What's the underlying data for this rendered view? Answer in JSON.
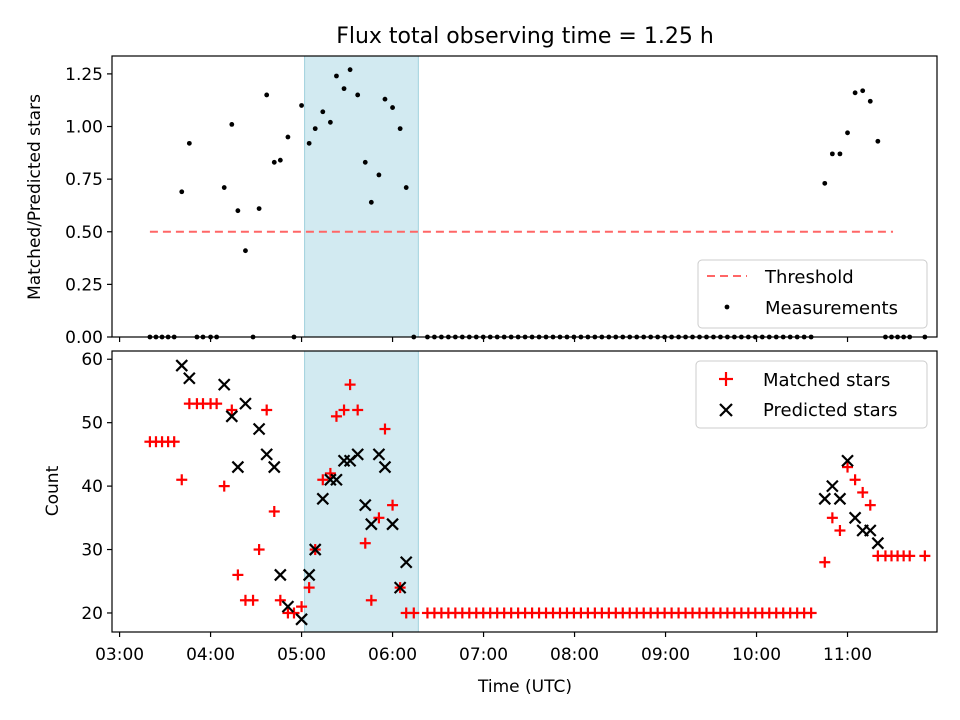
{
  "title": "Flux total observing time = 1.25 h",
  "colors": {
    "shade": "#add8e6",
    "threshold": "#ff6666",
    "matched": "#ff0000",
    "predicted": "#000000"
  },
  "chart_data": [
    {
      "type": "scatter",
      "panel": "top",
      "ylabel": "Matched/Predicted stars",
      "ylim": [
        0,
        1.335
      ],
      "xlim": [
        "02:55",
        "11:59"
      ],
      "yticks": [
        "0.00",
        "0.25",
        "0.50",
        "0.75",
        "1.00",
        "1.25"
      ],
      "grid": false,
      "legend_position": "lower-right",
      "shaded_interval": [
        "05:02",
        "06:17"
      ],
      "threshold": {
        "name": "Threshold",
        "value": 0.5,
        "x_range": [
          "03:20",
          "11:30"
        ]
      },
      "series": [
        {
          "name": "Measurements",
          "points": [
            [
              "03:20",
              0
            ],
            [
              "03:24",
              0
            ],
            [
              "03:28",
              0
            ],
            [
              "03:32",
              0
            ],
            [
              "03:36",
              0
            ],
            [
              "03:41",
              0.69
            ],
            [
              "03:46",
              0.92
            ],
            [
              "03:51",
              0
            ],
            [
              "03:55",
              0
            ],
            [
              "04:00",
              0
            ],
            [
              "04:04",
              0
            ],
            [
              "04:09",
              0.71
            ],
            [
              "04:14",
              1.01
            ],
            [
              "04:18",
              0.6
            ],
            [
              "04:23",
              0.41
            ],
            [
              "04:28",
              0
            ],
            [
              "04:32",
              0.61
            ],
            [
              "04:37",
              1.15
            ],
            [
              "04:42",
              0.83
            ],
            [
              "04:46",
              0.84
            ],
            [
              "04:51",
              0.95
            ],
            [
              "04:55",
              0
            ],
            [
              "05:00",
              1.1
            ],
            [
              "05:05",
              0.92
            ],
            [
              "05:09",
              0.99
            ],
            [
              "05:14",
              1.07
            ],
            [
              "05:19",
              1.02
            ],
            [
              "05:23",
              1.24
            ],
            [
              "05:28",
              1.18
            ],
            [
              "05:32",
              1.27
            ],
            [
              "05:37",
              1.15
            ],
            [
              "05:42",
              0.83
            ],
            [
              "05:46",
              0.64
            ],
            [
              "05:51",
              0.77
            ],
            [
              "05:55",
              1.13
            ],
            [
              "06:00",
              1.09
            ],
            [
              "06:05",
              0.99
            ],
            [
              "06:09",
              0.71
            ],
            [
              "06:14",
              0
            ],
            [
              "10:45",
              0.73
            ],
            [
              "10:50",
              0.87
            ],
            [
              "10:55",
              0.87
            ],
            [
              "11:00",
              0.97
            ],
            [
              "11:05",
              1.16
            ],
            [
              "11:10",
              1.17
            ],
            [
              "11:15",
              1.12
            ],
            [
              "11:20",
              0.93
            ],
            [
              "11:25",
              0
            ],
            [
              "11:29",
              0
            ],
            [
              "11:33",
              0
            ],
            [
              "11:37",
              0
            ],
            [
              "11:41",
              0
            ],
            [
              "11:51",
              0
            ]
          ],
          "zero_run": {
            "from": "06:23",
            "to": "10:40",
            "step_minutes": 4.6
          }
        }
      ]
    },
    {
      "type": "scatter",
      "panel": "bottom",
      "xlabel": "Time (UTC)",
      "ylabel": "Count",
      "ylim": [
        17,
        61.3
      ],
      "xlim": [
        "02:55",
        "11:59"
      ],
      "xticks": [
        "03:00",
        "04:00",
        "05:00",
        "06:00",
        "07:00",
        "08:00",
        "09:00",
        "10:00",
        "11:00"
      ],
      "yticks": [
        "20",
        "30",
        "40",
        "50",
        "60"
      ],
      "grid": false,
      "legend_position": "upper-right",
      "shaded_interval": [
        "05:02",
        "06:17"
      ],
      "series": [
        {
          "name": "Matched stars",
          "marker": "plus",
          "points": [
            [
              "03:20",
              47
            ],
            [
              "03:24",
              47
            ],
            [
              "03:28",
              47
            ],
            [
              "03:32",
              47
            ],
            [
              "03:36",
              47
            ],
            [
              "03:41",
              41
            ],
            [
              "03:46",
              53
            ],
            [
              "03:51",
              53
            ],
            [
              "03:55",
              53
            ],
            [
              "04:00",
              53
            ],
            [
              "04:04",
              53
            ],
            [
              "04:09",
              40
            ],
            [
              "04:14",
              52
            ],
            [
              "04:18",
              26
            ],
            [
              "04:23",
              22
            ],
            [
              "04:28",
              22
            ],
            [
              "04:32",
              30
            ],
            [
              "04:37",
              52
            ],
            [
              "04:42",
              36
            ],
            [
              "04:46",
              22
            ],
            [
              "04:51",
              20
            ],
            [
              "04:55",
              20
            ],
            [
              "05:00",
              21
            ],
            [
              "05:05",
              24
            ],
            [
              "05:09",
              30
            ],
            [
              "05:14",
              41
            ],
            [
              "05:19",
              42
            ],
            [
              "05:23",
              51
            ],
            [
              "05:28",
              52
            ],
            [
              "05:32",
              56
            ],
            [
              "05:37",
              52
            ],
            [
              "05:42",
              31
            ],
            [
              "05:46",
              22
            ],
            [
              "05:51",
              35
            ],
            [
              "05:55",
              49
            ],
            [
              "06:00",
              37
            ],
            [
              "06:05",
              24
            ],
            [
              "06:09",
              20
            ],
            [
              "06:14",
              20
            ],
            [
              "10:45",
              28
            ],
            [
              "10:50",
              35
            ],
            [
              "10:55",
              33
            ],
            [
              "11:00",
              43
            ],
            [
              "11:05",
              41
            ],
            [
              "11:10",
              39
            ],
            [
              "11:15",
              37
            ],
            [
              "11:20",
              29
            ],
            [
              "11:25",
              29
            ],
            [
              "11:29",
              29
            ],
            [
              "11:33",
              29
            ],
            [
              "11:37",
              29
            ],
            [
              "11:41",
              29
            ],
            [
              "11:51",
              29
            ]
          ],
          "constant_run": {
            "value": 20,
            "from": "06:23",
            "to": "10:40",
            "step_minutes": 4.6
          }
        },
        {
          "name": "Predicted stars",
          "marker": "x",
          "points": [
            [
              "03:41",
              59
            ],
            [
              "03:46",
              57
            ],
            [
              "04:09",
              56
            ],
            [
              "04:14",
              51
            ],
            [
              "04:18",
              43
            ],
            [
              "04:23",
              53
            ],
            [
              "04:32",
              49
            ],
            [
              "04:37",
              45
            ],
            [
              "04:42",
              43
            ],
            [
              "04:46",
              26
            ],
            [
              "04:51",
              21
            ],
            [
              "05:00",
              19
            ],
            [
              "05:05",
              26
            ],
            [
              "05:09",
              30
            ],
            [
              "05:14",
              38
            ],
            [
              "05:19",
              41
            ],
            [
              "05:23",
              41
            ],
            [
              "05:28",
              44
            ],
            [
              "05:32",
              44
            ],
            [
              "05:37",
              45
            ],
            [
              "05:42",
              37
            ],
            [
              "05:46",
              34
            ],
            [
              "05:51",
              45
            ],
            [
              "05:55",
              43
            ],
            [
              "06:00",
              34
            ],
            [
              "06:05",
              24
            ],
            [
              "06:09",
              28
            ],
            [
              "10:45",
              38
            ],
            [
              "10:50",
              40
            ],
            [
              "10:55",
              38
            ],
            [
              "11:00",
              44
            ],
            [
              "11:05",
              35
            ],
            [
              "11:10",
              33
            ],
            [
              "11:15",
              33
            ],
            [
              "11:20",
              31
            ]
          ]
        }
      ]
    }
  ]
}
